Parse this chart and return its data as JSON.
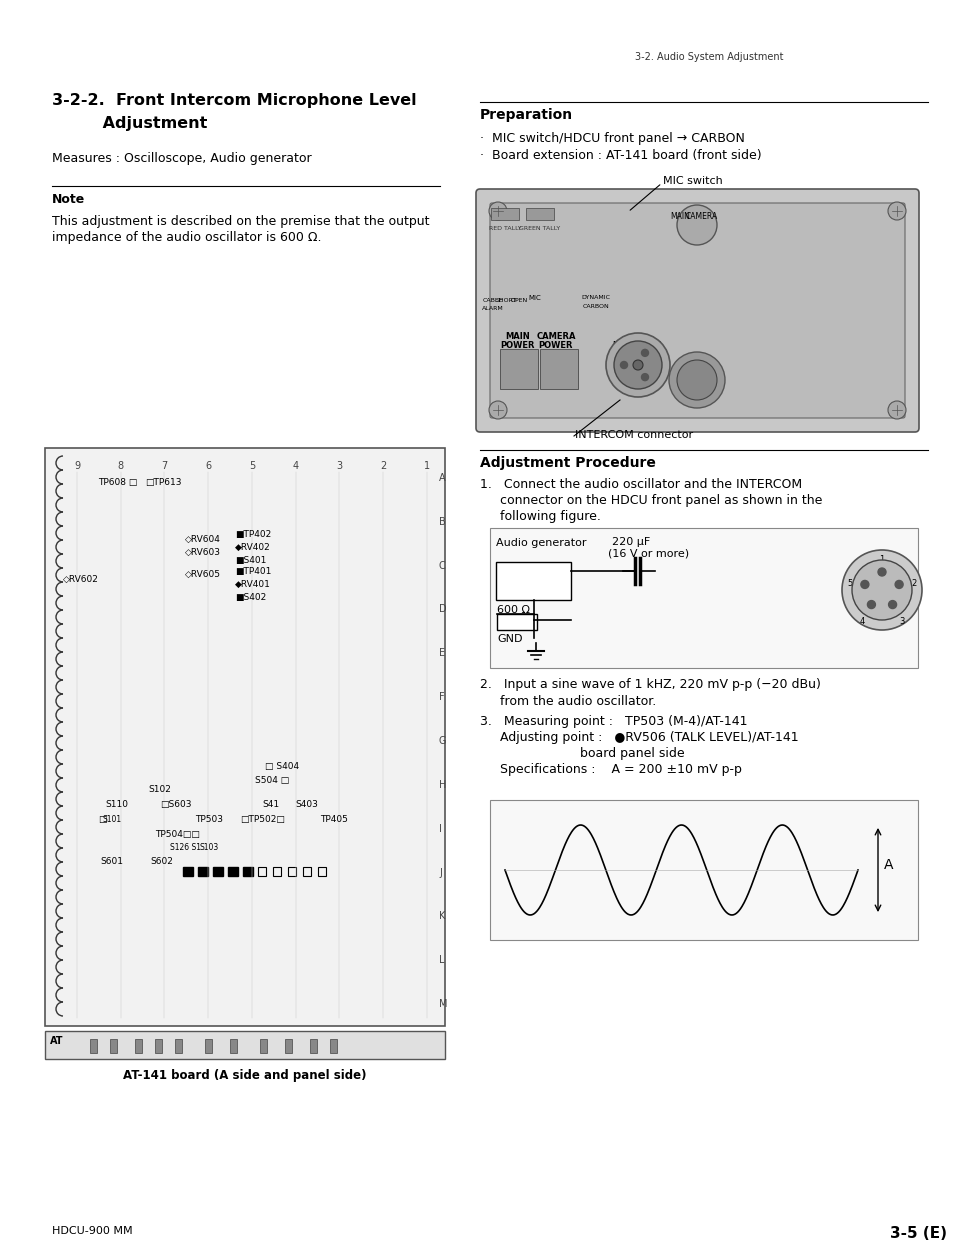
{
  "page_title_line1": "3-2-2.  Front Intercom Microphone Level",
  "page_title_line2": "         Adjustment",
  "header_right": "3-2. Audio System Adjustment",
  "footer_left": "HDCU-900 MM",
  "footer_right": "3-5 (E)",
  "measures_text": "Measures : Oscilloscope, Audio generator",
  "note_title": "Note",
  "note_body1": "This adjustment is described on the premise that the output",
  "note_body2": "impedance of the audio oscillator is 600 Ω.",
  "prep_title": "Preparation",
  "prep_item1": "·  MIC switch/HDCU front panel → CARBON",
  "prep_item2": "·  Board extension : AT-141 board (front side)",
  "mic_switch_label": "MIC switch",
  "intercom_connector_label": "INTERCOM connector",
  "adj_title": "Adjustment Procedure",
  "adj_step1_line1": "1.   Connect the audio oscillator and the INTERCOM",
  "adj_step1_line2": "     connector on the HDCU front panel as shown in the",
  "adj_step1_line3": "     following figure.",
  "circuit_label_audio_gen": "Audio generator",
  "circuit_label_220uF_line1": "220 μF",
  "circuit_label_220uF_line2": "(16 V or more)",
  "circuit_label_600ohm": "600 Ω",
  "circuit_label_gnd": "GND",
  "adj_step2_line1": "2.   Input a sine wave of 1 kHZ, 220 mV p-p (−20 dBu)",
  "adj_step2_line2": "     from the audio oscillator.",
  "adj_step3_line1": "3.   Measuring point :   TP503 (M-4)/AT-141",
  "adj_step3_line2": "     Adjusting point :   ●RV506 (TALK LEVEL)/AT-141",
  "adj_step3_line3": "                         board panel side",
  "adj_step3_line4": "     Specifications :    A = 200 ±10 mV p-p",
  "waveform_label_A": "A",
  "board_label": "AT-141 board (A side and panel side)",
  "bg_color": "#ffffff",
  "text_color": "#000000"
}
